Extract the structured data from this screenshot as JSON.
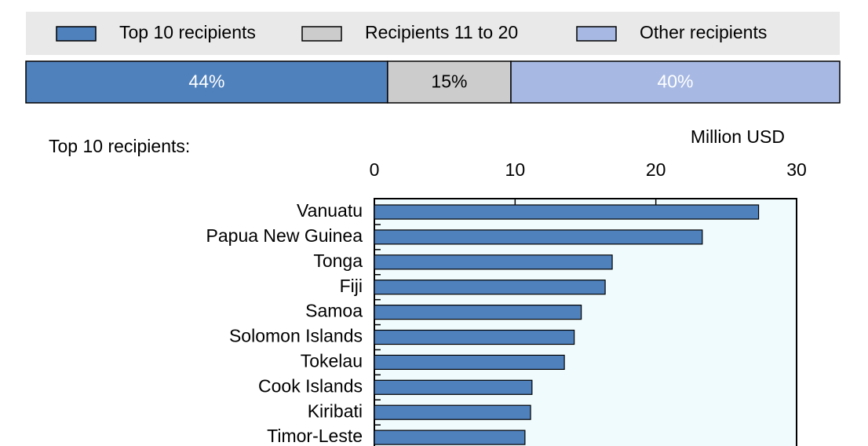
{
  "chart_data": [
    {
      "type": "stacked-share",
      "series": [
        {
          "name": "Top 10 recipients",
          "color": "#4f81bd",
          "label_color": "#ffffff",
          "values": [
            44
          ],
          "value_labels": [
            "44%"
          ]
        },
        {
          "name": "Recipients 11 to 20",
          "color": "#cccccc",
          "label_color": "#000000",
          "values": [
            15
          ],
          "value_labels": [
            "15%"
          ]
        },
        {
          "name": "Other recipients",
          "color": "#a7b9e3",
          "label_color": "#ffffff",
          "values": [
            40
          ],
          "value_labels": [
            "40%"
          ]
        }
      ]
    },
    {
      "type": "hbar",
      "title": "Top 10 recipients:",
      "x_label": "Million USD",
      "categories": [
        "Vanuatu",
        "Papua New Guinea",
        "Tonga",
        "Fiji",
        "Samoa",
        "Solomon Islands",
        "Tokelau",
        "Cook Islands",
        "Kiribati",
        "Timor-Leste"
      ],
      "values": [
        27.3,
        23.3,
        16.9,
        16.4,
        14.7,
        14.2,
        13.5,
        11.2,
        11.1,
        10.7
      ],
      "color": "#4f81bd",
      "xlim": [
        0,
        30
      ],
      "xticks": [
        0,
        10,
        20,
        30
      ]
    }
  ]
}
